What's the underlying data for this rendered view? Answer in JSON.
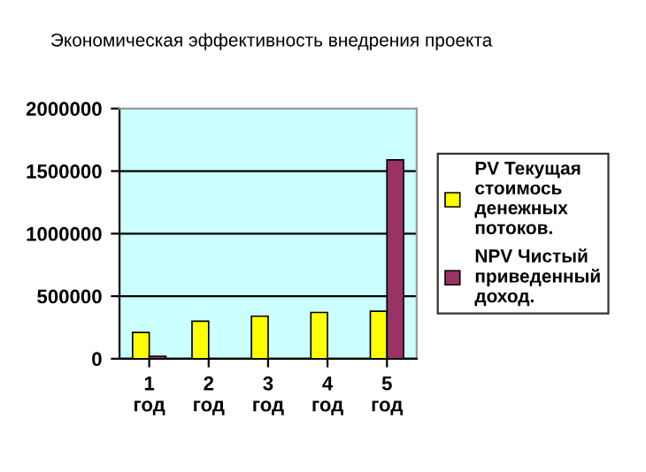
{
  "chart_data": {
    "type": "bar",
    "title": "Экономическая эффективность внедрения проекта",
    "categories": [
      "1 год",
      "2 год",
      "3 год",
      "4 год",
      "5 год"
    ],
    "series": [
      {
        "name": "PV Текущая стоимось денежных потоков.",
        "color": "#ffff00",
        "values": [
          210000,
          300000,
          340000,
          370000,
          380000
        ]
      },
      {
        "name": "NPV Чистый приведенный доход.",
        "color": "#993366",
        "values": [
          20000,
          null,
          null,
          null,
          1590000
        ]
      }
    ],
    "ylim": [
      0,
      2000000
    ],
    "yticks": [
      0,
      500000,
      1000000,
      1500000,
      2000000
    ],
    "grid": "y",
    "legend": "right"
  }
}
